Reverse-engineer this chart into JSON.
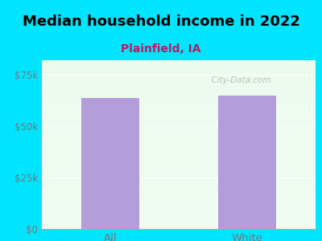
{
  "title": "Median household income in 2022",
  "subtitle": "Plainfield, IA",
  "categories": [
    "All",
    "White"
  ],
  "values": [
    63500,
    65000
  ],
  "bar_color": "#b39ddb",
  "bg_outer": "#00e5ff",
  "bg_plot": "#f0fff4",
  "title_fontsize": 13,
  "subtitle_fontsize": 10,
  "subtitle_color": "#c2185b",
  "tick_color": "#777777",
  "ylabel_ticks": [
    0,
    25000,
    50000,
    75000
  ],
  "ylabel_labels": [
    "$0",
    "$25k",
    "$50k",
    "$75k"
  ],
  "ylim": [
    0,
    82000
  ],
  "watermark": "  City-Data.com"
}
